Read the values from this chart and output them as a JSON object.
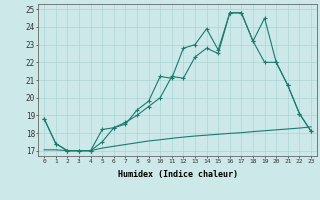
{
  "xlabel": "Humidex (Indice chaleur)",
  "xlim": [
    -0.5,
    23.5
  ],
  "ylim": [
    16.7,
    25.3
  ],
  "yticks": [
    17,
    18,
    19,
    20,
    21,
    22,
    23,
    24,
    25
  ],
  "xticks": [
    0,
    1,
    2,
    3,
    4,
    5,
    6,
    7,
    8,
    9,
    10,
    11,
    12,
    13,
    14,
    15,
    16,
    17,
    18,
    19,
    20,
    21,
    22,
    23
  ],
  "line_color": "#1a7a6e",
  "background_color": "#cce8e8",
  "grid_color": "#aad4d4",
  "line1_x": [
    0,
    1,
    2,
    3,
    4,
    5,
    6,
    7,
    8,
    9,
    10,
    11,
    12,
    13,
    14,
    15,
    16,
    17,
    18,
    19,
    20,
    21,
    22,
    23
  ],
  "line1_y": [
    18.8,
    17.4,
    17.0,
    17.0,
    17.0,
    17.5,
    18.3,
    18.5,
    19.3,
    19.8,
    21.2,
    21.1,
    22.8,
    23.0,
    23.9,
    22.7,
    24.8,
    24.8,
    23.2,
    24.5,
    22.0,
    20.7,
    19.1,
    18.1
  ],
  "line2_x": [
    0,
    1,
    2,
    3,
    4,
    5,
    6,
    7,
    8,
    9,
    10,
    11,
    12,
    13,
    14,
    15,
    16,
    17,
    18,
    19,
    20,
    21,
    22,
    23
  ],
  "line2_y": [
    18.8,
    17.4,
    17.0,
    17.0,
    17.0,
    18.2,
    18.3,
    18.6,
    19.0,
    19.5,
    20.0,
    21.2,
    21.1,
    22.3,
    22.8,
    22.5,
    24.8,
    24.8,
    23.2,
    22.0,
    22.0,
    20.7,
    19.1,
    18.1
  ],
  "line3_x": [
    0,
    1,
    2,
    3,
    4,
    5,
    6,
    7,
    8,
    9,
    10,
    11,
    12,
    13,
    14,
    15,
    16,
    17,
    18,
    19,
    20,
    21,
    22,
    23
  ],
  "line3_y": [
    17.05,
    17.05,
    17.0,
    17.0,
    17.0,
    17.15,
    17.25,
    17.35,
    17.45,
    17.55,
    17.62,
    17.7,
    17.77,
    17.83,
    17.88,
    17.93,
    17.98,
    18.02,
    18.08,
    18.13,
    18.18,
    18.23,
    18.28,
    18.35
  ]
}
